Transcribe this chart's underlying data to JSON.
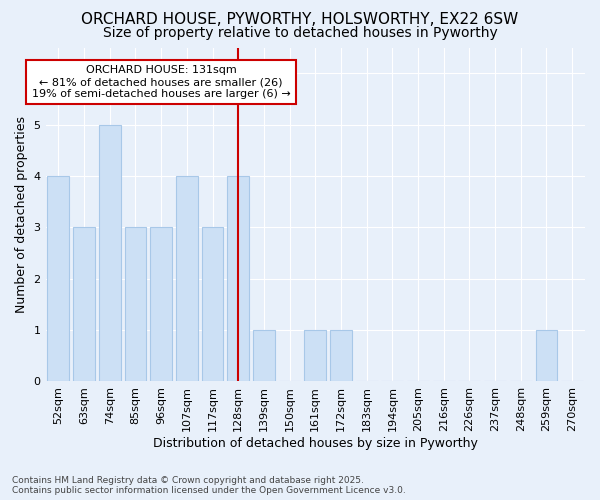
{
  "title": "ORCHARD HOUSE, PYWORTHY, HOLSWORTHY, EX22 6SW",
  "subtitle": "Size of property relative to detached houses in Pyworthy",
  "xlabel": "Distribution of detached houses by size in Pyworthy",
  "ylabel": "Number of detached properties",
  "categories": [
    "52sqm",
    "63sqm",
    "74sqm",
    "85sqm",
    "96sqm",
    "107sqm",
    "117sqm",
    "128sqm",
    "139sqm",
    "150sqm",
    "161sqm",
    "172sqm",
    "183sqm",
    "194sqm",
    "205sqm",
    "216sqm",
    "226sqm",
    "237sqm",
    "248sqm",
    "259sqm",
    "270sqm"
  ],
  "values": [
    4,
    3,
    5,
    3,
    3,
    4,
    3,
    4,
    1,
    0,
    1,
    1,
    0,
    0,
    0,
    0,
    0,
    0,
    0,
    1,
    0
  ],
  "bar_color": "#cce0f5",
  "bar_edge_color": "#a8c8e8",
  "vline_index": 7,
  "annotation_title": "ORCHARD HOUSE: 131sqm",
  "annotation_line1": "← 81% of detached houses are smaller (26)",
  "annotation_line2": "19% of semi-detached houses are larger (6) →",
  "ylim_max": 6.5,
  "yticks": [
    0,
    1,
    2,
    3,
    4,
    5,
    6
  ],
  "background_color": "#e8f0fa",
  "grid_color": "#ffffff",
  "annotation_box_facecolor": "#ffffff",
  "annotation_box_edgecolor": "#cc0000",
  "vline_color": "#cc0000",
  "title_fontsize": 11,
  "subtitle_fontsize": 10,
  "axis_label_fontsize": 9,
  "tick_fontsize": 8,
  "annot_fontsize": 8,
  "footer_fontsize": 6.5,
  "footer_line1": "Contains HM Land Registry data © Crown copyright and database right 2025.",
  "footer_line2": "Contains public sector information licensed under the Open Government Licence v3.0."
}
